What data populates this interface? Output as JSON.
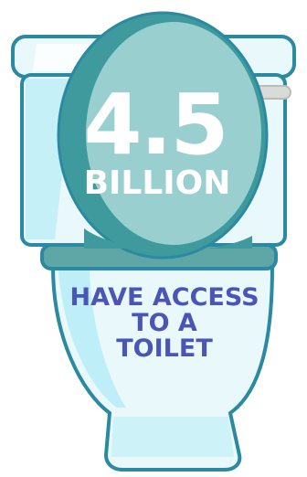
{
  "stat": {
    "number": "4.5",
    "unit": "BILLION"
  },
  "caption": {
    "line1": "HAVE ACCESS",
    "line2": "TO A",
    "line3": "TOILET"
  },
  "colors": {
    "outline": "#2b8aa2",
    "body_fill": "#e8f8fb",
    "body_shade": "#b6ecf6",
    "lid": "#3e9a9c",
    "lid_light": "#8cc8c8",
    "lid_inner": "#9ed3d2",
    "seat": "#5fa7a6",
    "handle": "#d9dcd6",
    "stat_text": "#ffffff",
    "caption_text": "#4a55b5"
  },
  "illustration": {
    "subject": "toilet",
    "icon": "toilet-icon"
  }
}
